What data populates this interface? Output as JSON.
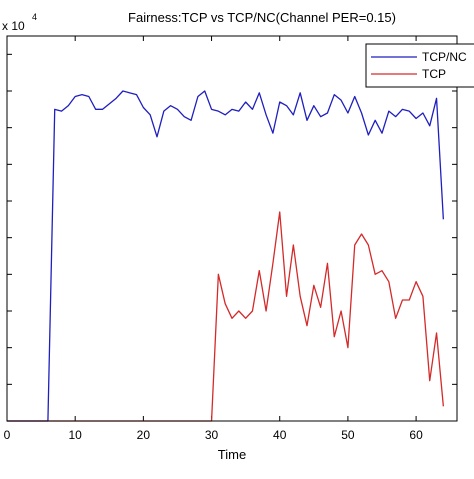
{
  "chart_data": {
    "type": "line",
    "title": "Fairness:TCP vs TCP/NC(Channel PER=0.15)",
    "xlabel": "Time",
    "ylabel": "",
    "y_multiplier_label": "x 10",
    "y_multiplier_exponent": "4",
    "xlim": [
      0,
      66
    ],
    "ylim": [
      0,
      10.5
    ],
    "x_ticks": [
      0,
      10,
      20,
      30,
      40,
      50,
      60
    ],
    "x_tick_labels": [
      "0",
      "10",
      "20",
      "30",
      "40",
      "50",
      "60"
    ],
    "y_ticks": [
      1,
      2,
      3,
      4,
      5,
      6,
      7,
      8,
      9,
      10
    ],
    "grid": false,
    "legend_position": "top-right",
    "series": [
      {
        "name": "TCP/NC",
        "color": "#1f1fbf",
        "x": [
          0,
          6,
          7,
          8,
          9,
          10,
          11,
          12,
          13,
          14,
          15,
          16,
          17,
          18,
          19,
          20,
          21,
          22,
          23,
          24,
          25,
          26,
          27,
          28,
          29,
          30,
          31,
          32,
          33,
          34,
          35,
          36,
          37,
          38,
          39,
          40,
          41,
          42,
          43,
          44,
          45,
          46,
          47,
          48,
          49,
          50,
          51,
          52,
          53,
          54,
          55,
          56,
          57,
          58,
          59,
          60,
          61,
          62,
          63,
          64
        ],
        "y": [
          0,
          0,
          8.5,
          8.45,
          8.6,
          8.85,
          8.9,
          8.85,
          8.5,
          8.5,
          8.65,
          8.8,
          9.0,
          8.95,
          8.9,
          8.55,
          8.35,
          7.75,
          8.45,
          8.6,
          8.5,
          8.3,
          8.2,
          8.85,
          9.0,
          8.5,
          8.45,
          8.35,
          8.5,
          8.45,
          8.7,
          8.5,
          8.95,
          8.35,
          7.85,
          8.7,
          8.6,
          8.35,
          8.95,
          8.2,
          8.6,
          8.3,
          8.4,
          8.9,
          8.75,
          8.4,
          8.85,
          8.4,
          7.8,
          8.2,
          7.85,
          8.45,
          8.3,
          8.5,
          8.45,
          8.25,
          8.4,
          8.05,
          8.8,
          5.5
        ]
      },
      {
        "name": "TCP",
        "color": "#d42a2a",
        "x": [
          0,
          30,
          31,
          32,
          33,
          34,
          35,
          36,
          37,
          38,
          39,
          40,
          41,
          42,
          43,
          44,
          45,
          46,
          47,
          48,
          49,
          50,
          51,
          52,
          53,
          54,
          55,
          56,
          57,
          58,
          59,
          60,
          61,
          62,
          63,
          64
        ],
        "y": [
          0,
          0,
          4.0,
          3.2,
          2.8,
          3.0,
          2.8,
          3.0,
          4.1,
          3.0,
          4.3,
          5.7,
          3.4,
          4.8,
          3.4,
          2.6,
          3.7,
          3.1,
          4.3,
          2.3,
          3.0,
          2.0,
          4.8,
          5.1,
          4.8,
          4.0,
          4.1,
          3.8,
          2.8,
          3.3,
          3.3,
          3.8,
          3.4,
          1.1,
          2.4,
          0.4
        ]
      }
    ]
  }
}
